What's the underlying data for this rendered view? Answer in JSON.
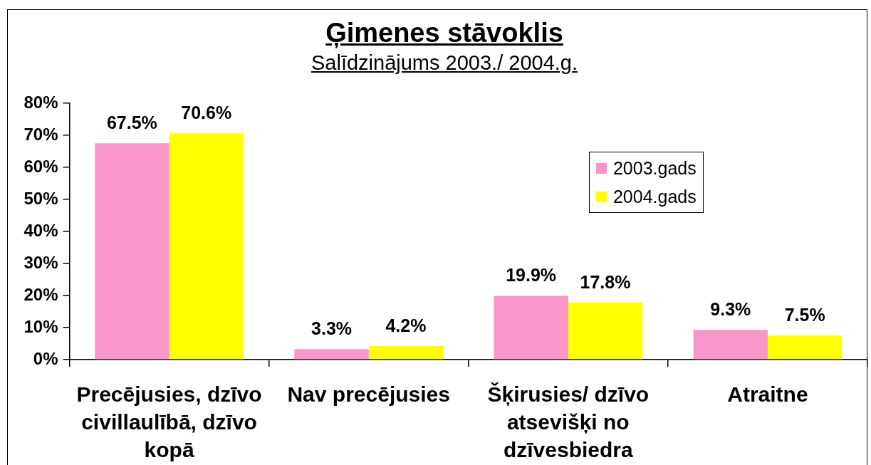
{
  "chart_data": {
    "type": "bar",
    "title": "Ģimenes stāvoklis",
    "subtitle": "Salīdzinājums 2003./ 2004.g.",
    "categories": [
      "Precējusies, dzīvo civillaulībā, dzīvo kopā",
      "Nav precējusies",
      "Šķirusies/ dzīvo atsevišķi no dzīvesbiedra",
      "Atraitne"
    ],
    "series": [
      {
        "name": "2003.gads",
        "color": "#f896c8",
        "values": [
          67.5,
          3.3,
          19.9,
          9.3
        ],
        "value_labels": [
          "67.5%",
          "3.3%",
          "19.9%",
          "9.3%"
        ]
      },
      {
        "name": "2004.gads",
        "color": "#ffff00",
        "values": [
          70.6,
          4.2,
          17.8,
          7.5
        ],
        "value_labels": [
          "70.6%",
          "4.2%",
          "17.8%",
          "7.5%"
        ]
      }
    ],
    "ylim": [
      0,
      80
    ],
    "yticks": [
      {
        "value": 0,
        "label": "0%"
      },
      {
        "value": 10,
        "label": "10%"
      },
      {
        "value": 20,
        "label": "20%"
      },
      {
        "value": 30,
        "label": "30%"
      },
      {
        "value": 40,
        "label": "40%"
      },
      {
        "value": 50,
        "label": "50%"
      },
      {
        "value": 60,
        "label": "60%"
      },
      {
        "value": 70,
        "label": "70%"
      },
      {
        "value": 80,
        "label": "80%"
      }
    ],
    "legend": "right"
  }
}
